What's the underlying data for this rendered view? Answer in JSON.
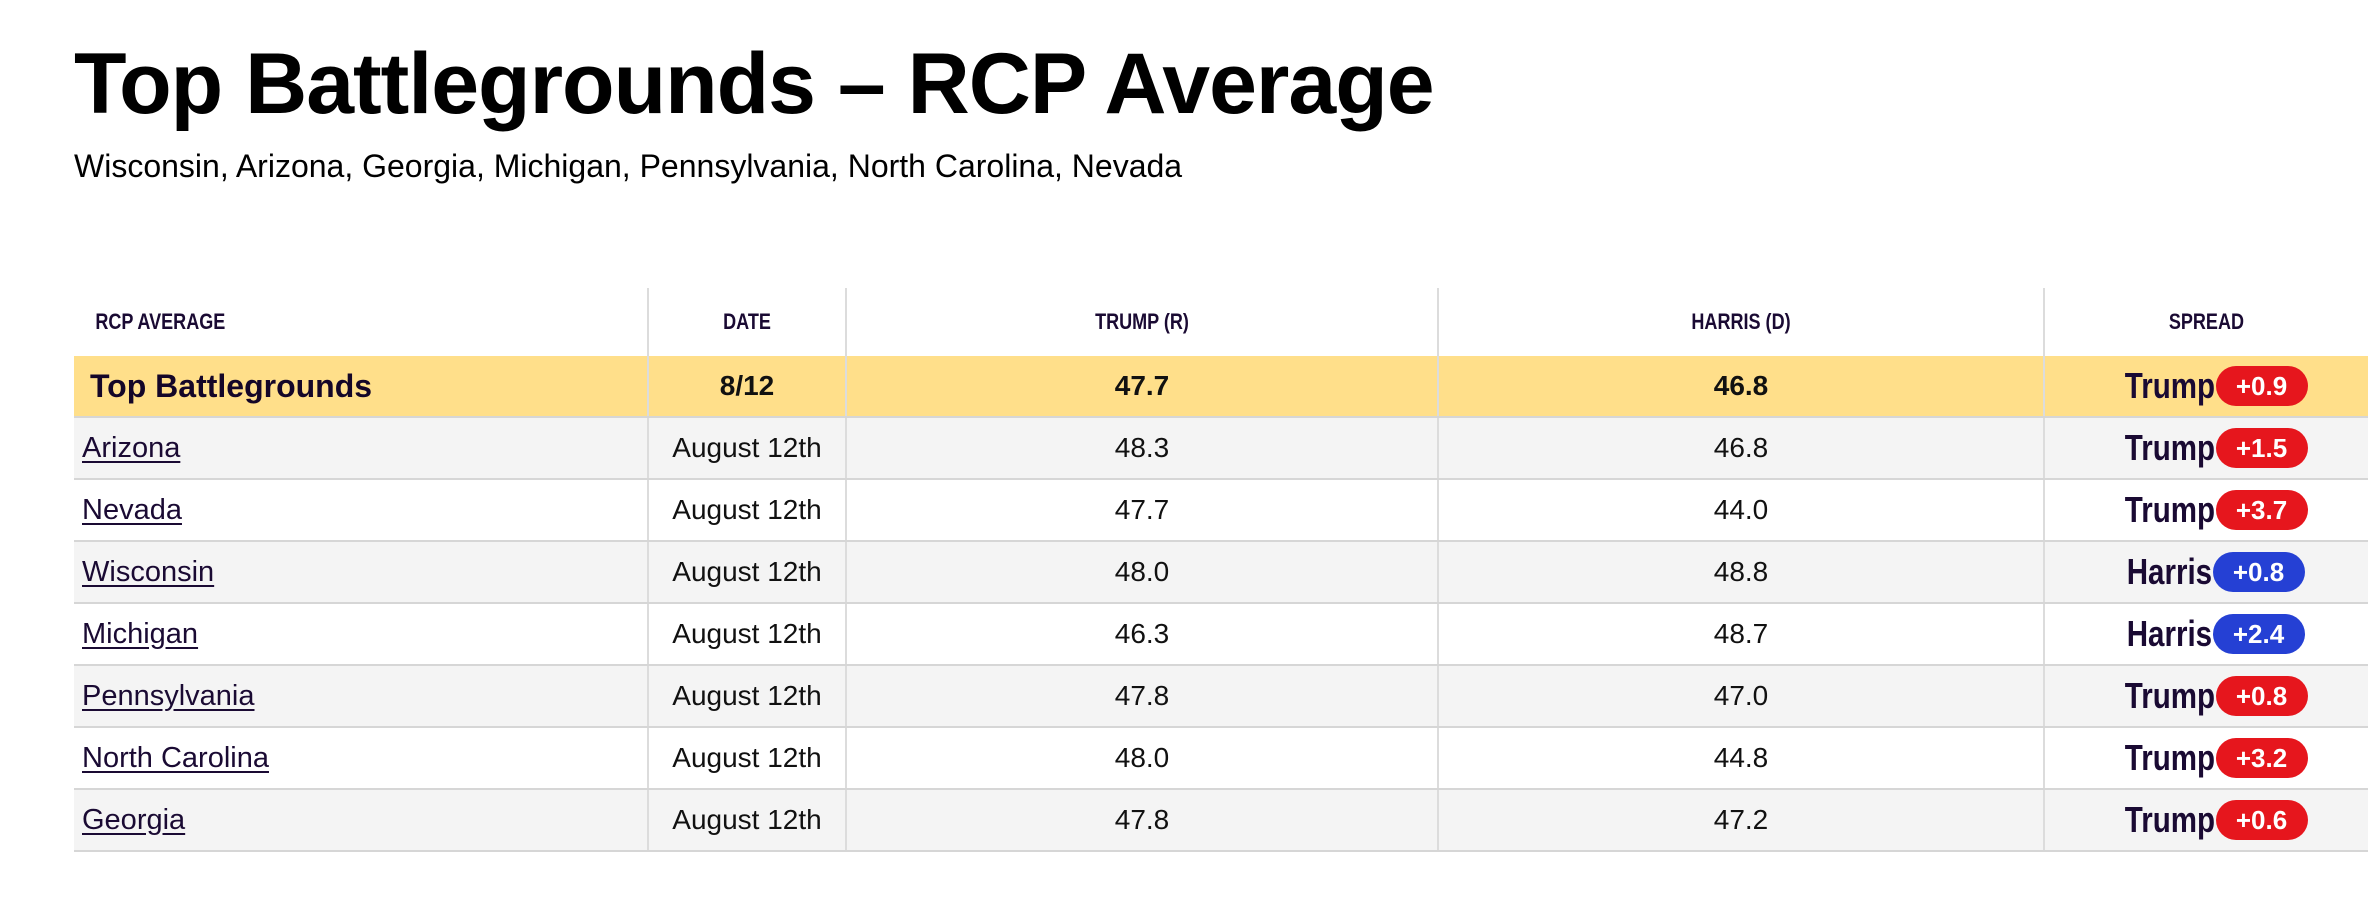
{
  "title": "Top Battlegrounds – RCP Average",
  "subtitle": "Wisconsin, Arizona, Georgia, Michigan, Pennsylvania, North Carolina, Nevada",
  "table": {
    "headers": {
      "name": "RCP AVERAGE",
      "date": "DATE",
      "trump": "TRUMP (R)",
      "harris": "HARRIS (D)",
      "spread": "SPREAD"
    },
    "total": {
      "name": "Top Battlegrounds",
      "date": "8/12",
      "trump": "47.7",
      "harris": "46.8",
      "spread_leader": "Trump",
      "spread_value": "+0.9",
      "spread_color": "#e6161d"
    },
    "rows": [
      {
        "name": "Arizona",
        "date": "August 12th",
        "trump": "48.3",
        "harris": "46.8",
        "spread_leader": "Trump",
        "spread_value": "+1.5",
        "spread_color": "#e6161d"
      },
      {
        "name": "Nevada",
        "date": "August 12th",
        "trump": "47.7",
        "harris": "44.0",
        "spread_leader": "Trump",
        "spread_value": "+3.7",
        "spread_color": "#e6161d"
      },
      {
        "name": "Wisconsin",
        "date": "August 12th",
        "trump": "48.0",
        "harris": "48.8",
        "spread_leader": "Harris",
        "spread_value": "+0.8",
        "spread_color": "#2540d4"
      },
      {
        "name": "Michigan",
        "date": "August 12th",
        "trump": "46.3",
        "harris": "48.7",
        "spread_leader": "Harris",
        "spread_value": "+2.4",
        "spread_color": "#2540d4"
      },
      {
        "name": "Pennsylvania",
        "date": "August 12th",
        "trump": "47.8",
        "harris": "47.0",
        "spread_leader": "Trump",
        "spread_value": "+0.8",
        "spread_color": "#e6161d"
      },
      {
        "name": "North Carolina",
        "date": "August 12th",
        "trump": "48.0",
        "harris": "44.8",
        "spread_leader": "Trump",
        "spread_value": "+3.2",
        "spread_color": "#e6161d"
      },
      {
        "name": "Georgia",
        "date": "August 12th",
        "trump": "47.8",
        "harris": "47.2",
        "spread_leader": "Trump",
        "spread_value": "+0.6",
        "spread_color": "#e6161d"
      }
    ]
  }
}
